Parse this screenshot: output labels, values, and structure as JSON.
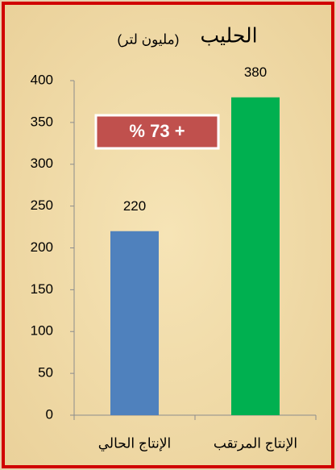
{
  "chart_data": {
    "type": "bar",
    "title": "الحليب",
    "subtitle": "(مليون لتر)",
    "categories": [
      "الإنتاج الحالي",
      "الإنتاج المرتقب"
    ],
    "values": [
      220,
      380
    ],
    "colors": [
      "#4f81bd",
      "#00b050"
    ],
    "annotation": "+ 73 %",
    "ylim": [
      0,
      400
    ],
    "yticks": [
      0,
      50,
      100,
      150,
      200,
      250,
      300,
      350,
      400
    ],
    "grid": false
  }
}
